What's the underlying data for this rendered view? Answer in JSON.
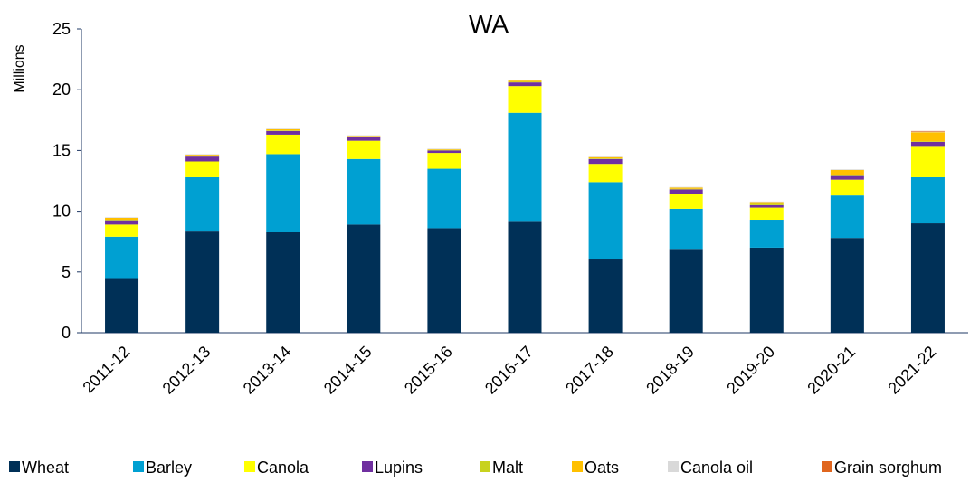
{
  "chart_data": {
    "type": "stacked_bar",
    "title": "WA",
    "y_label": "Millions",
    "categories": [
      "2011-12",
      "2012-13",
      "2013-14",
      "2014-15",
      "2015-16",
      "2016-17",
      "2017-18",
      "2018-19",
      "2019-20",
      "2020-21",
      "2021-22"
    ],
    "series": [
      {
        "name": "Wheat",
        "color": "#003057",
        "values": [
          4.5,
          8.4,
          8.3,
          8.9,
          8.6,
          9.2,
          6.1,
          6.9,
          7.0,
          7.8,
          9.0
        ]
      },
      {
        "name": "Barley",
        "color": "#00a0d2",
        "values": [
          3.4,
          4.4,
          6.4,
          5.4,
          4.9,
          8.9,
          6.3,
          3.3,
          2.3,
          3.5,
          3.8
        ]
      },
      {
        "name": "Canola",
        "color": "#ffff00",
        "values": [
          1.0,
          1.3,
          1.6,
          1.5,
          1.3,
          2.2,
          1.5,
          1.2,
          1.0,
          1.3,
          2.5
        ]
      },
      {
        "name": "Lupins",
        "color": "#7030a0",
        "values": [
          0.35,
          0.4,
          0.3,
          0.3,
          0.2,
          0.3,
          0.4,
          0.4,
          0.2,
          0.3,
          0.4
        ]
      },
      {
        "name": "Malt",
        "color": "#c8d21e",
        "values": [
          0.05,
          0.05,
          0.05,
          0.05,
          0.05,
          0.05,
          0.05,
          0.05,
          0.1,
          0.05,
          0.05
        ]
      },
      {
        "name": "Oats",
        "color": "#ffc000",
        "values": [
          0.15,
          0.1,
          0.1,
          0.05,
          0.05,
          0.1,
          0.1,
          0.1,
          0.15,
          0.45,
          0.75
        ]
      },
      {
        "name": "Canola oil",
        "color": "#d9d9d9",
        "values": [
          0.05,
          0.05,
          0.05,
          0.05,
          0.05,
          0.05,
          0.05,
          0.05,
          0.05,
          0.05,
          0.05
        ]
      },
      {
        "name": "Grain sorghum",
        "color": "#e0661e",
        "values": [
          0,
          0,
          0,
          0,
          0,
          0,
          0,
          0,
          0,
          0,
          0.05
        ]
      }
    ],
    "ylim": [
      0,
      25
    ],
    "yticks": [
      0,
      5,
      10,
      15,
      20,
      25
    ],
    "grid": false,
    "legend": "bottom"
  }
}
